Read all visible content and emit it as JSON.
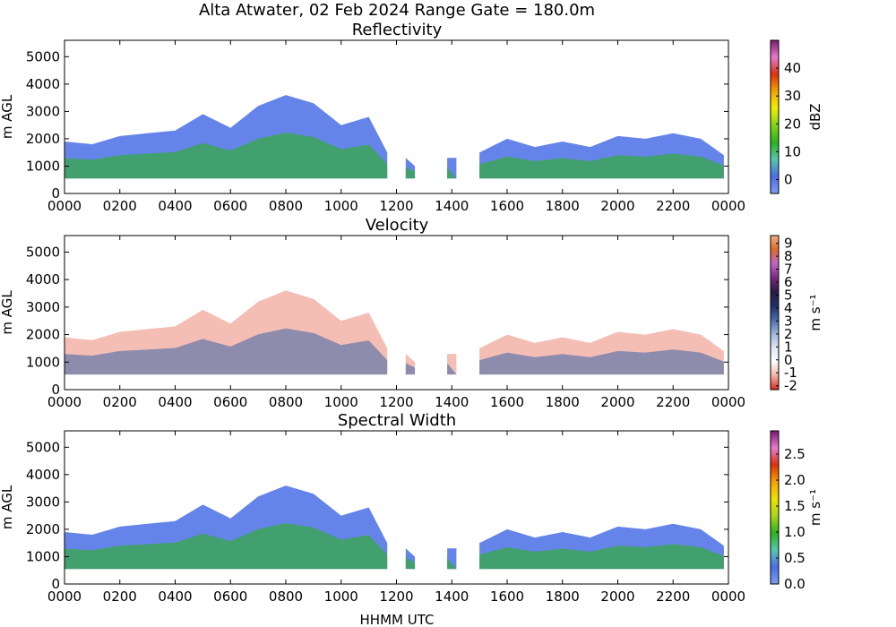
{
  "figure": {
    "suptitle": "Alta Atwater, 02 Feb 2024 Range Gate = 180.0m",
    "xlabel": "HHMM UTC"
  },
  "colors": {
    "ref_scale": [
      "#7f9cf0",
      "#4a6fe6",
      "#58c7b0",
      "#2bb31a",
      "#7fd614",
      "#f0f000",
      "#f5a300",
      "#e0300a",
      "#e87ad0",
      "#7a1a70"
    ],
    "vel_scale": [
      "#d9281c",
      "#f2b3a8",
      "#ffffff",
      "#dfe6f5",
      "#9fb5dc",
      "#4a6aa8",
      "#1f2f66",
      "#2a1a44",
      "#7a2a80",
      "#c066c8",
      "#e06a2a",
      "#f4b088"
    ],
    "sw_scale": [
      "#7f9cf0",
      "#4a6fe6",
      "#58c7b0",
      "#2bb31a",
      "#a8d614",
      "#f0e000",
      "#f5a300",
      "#e0300a",
      "#e87ad0",
      "#7a1a70"
    ]
  },
  "chart_data": [
    {
      "type": "heatmap",
      "title": "Reflectivity",
      "ylabel": "m AGL",
      "xlim": [
        "0000",
        "0000"
      ],
      "xticks": [
        "0000",
        "0200",
        "0400",
        "0600",
        "0800",
        "1000",
        "1200",
        "1400",
        "1600",
        "1800",
        "2000",
        "2200",
        "0000"
      ],
      "ylim": [
        0,
        5600
      ],
      "yticks": [
        "0",
        "1000",
        "2000",
        "3000",
        "4000",
        "5000"
      ],
      "colorbar": {
        "label": "dBZ",
        "ticks": [
          "0",
          "10",
          "20",
          "30",
          "40"
        ],
        "range": [
          -5,
          50
        ]
      },
      "echo_top_m": [
        [
          "0000",
          1900
        ],
        [
          "0100",
          1800
        ],
        [
          "0200",
          2100
        ],
        [
          "0300",
          2200
        ],
        [
          "0400",
          2300
        ],
        [
          "0500",
          2900
        ],
        [
          "0600",
          2400
        ],
        [
          "0700",
          3200
        ],
        [
          "0800",
          3600
        ],
        [
          "0900",
          3300
        ],
        [
          "1000",
          2500
        ],
        [
          "1100",
          2800
        ],
        [
          "1140",
          1500
        ],
        [
          "1200",
          0
        ],
        [
          "1220",
          1300
        ],
        [
          "1240",
          1000
        ],
        [
          "1300",
          0
        ],
        [
          "1350",
          1300
        ],
        [
          "1410",
          0
        ],
        [
          "1500",
          1500
        ],
        [
          "1600",
          2000
        ],
        [
          "1700",
          1700
        ],
        [
          "1800",
          1900
        ],
        [
          "1900",
          1700
        ],
        [
          "2000",
          2100
        ],
        [
          "2100",
          2000
        ],
        [
          "2200",
          2200
        ],
        [
          "2300",
          2000
        ],
        [
          "2350",
          1400
        ]
      ]
    },
    {
      "type": "heatmap",
      "title": "Velocity",
      "ylabel": "m AGL",
      "xlim": [
        "0000",
        "0000"
      ],
      "xticks": [
        "0000",
        "0200",
        "0400",
        "0600",
        "0800",
        "1000",
        "1200",
        "1400",
        "1600",
        "1800",
        "2000",
        "2200",
        "0000"
      ],
      "ylim": [
        0,
        5600
      ],
      "yticks": [
        "0",
        "1000",
        "2000",
        "3000",
        "4000",
        "5000"
      ],
      "colorbar": {
        "label": "m s⁻¹",
        "ticks": [
          "-2",
          "-1",
          "0",
          "1",
          "2",
          "3",
          "4",
          "5",
          "6",
          "7",
          "8",
          "9"
        ],
        "range": [
          -2.3,
          9.6
        ]
      },
      "echo_top_m": [
        [
          "0000",
          1900
        ],
        [
          "0100",
          1800
        ],
        [
          "0200",
          2100
        ],
        [
          "0300",
          2200
        ],
        [
          "0400",
          2300
        ],
        [
          "0500",
          2900
        ],
        [
          "0600",
          2400
        ],
        [
          "0700",
          3200
        ],
        [
          "0800",
          3600
        ],
        [
          "0900",
          3300
        ],
        [
          "1000",
          2500
        ],
        [
          "1100",
          2800
        ],
        [
          "1140",
          1500
        ],
        [
          "1200",
          0
        ],
        [
          "1220",
          1300
        ],
        [
          "1240",
          1000
        ],
        [
          "1300",
          0
        ],
        [
          "1350",
          1300
        ],
        [
          "1410",
          0
        ],
        [
          "1500",
          1500
        ],
        [
          "1600",
          2000
        ],
        [
          "1700",
          1700
        ],
        [
          "1800",
          1900
        ],
        [
          "1900",
          1700
        ],
        [
          "2000",
          2100
        ],
        [
          "2100",
          2000
        ],
        [
          "2200",
          2200
        ],
        [
          "2300",
          2000
        ],
        [
          "2350",
          1400
        ]
      ]
    },
    {
      "type": "heatmap",
      "title": "Spectral Width",
      "ylabel": "m AGL",
      "xlabel": "HHMM UTC",
      "xlim": [
        "0000",
        "0000"
      ],
      "xticks": [
        "0000",
        "0200",
        "0400",
        "0600",
        "0800",
        "1000",
        "1200",
        "1400",
        "1600",
        "1800",
        "2000",
        "2200",
        "0000"
      ],
      "ylim": [
        0,
        5600
      ],
      "yticks": [
        "0",
        "1000",
        "2000",
        "3000",
        "4000",
        "5000"
      ],
      "colorbar": {
        "label": "m s⁻¹",
        "ticks": [
          "0.0",
          "0.5",
          "1.0",
          "1.5",
          "2.0",
          "2.5"
        ],
        "range": [
          0,
          2.95
        ]
      },
      "echo_top_m": [
        [
          "0000",
          1900
        ],
        [
          "0100",
          1800
        ],
        [
          "0200",
          2100
        ],
        [
          "0300",
          2200
        ],
        [
          "0400",
          2300
        ],
        [
          "0500",
          2900
        ],
        [
          "0600",
          2400
        ],
        [
          "0700",
          3200
        ],
        [
          "0800",
          3600
        ],
        [
          "0900",
          3300
        ],
        [
          "1000",
          2500
        ],
        [
          "1100",
          2800
        ],
        [
          "1140",
          1500
        ],
        [
          "1200",
          0
        ],
        [
          "1220",
          1300
        ],
        [
          "1240",
          1000
        ],
        [
          "1300",
          0
        ],
        [
          "1350",
          1300
        ],
        [
          "1410",
          0
        ],
        [
          "1500",
          1500
        ],
        [
          "1600",
          2000
        ],
        [
          "1700",
          1700
        ],
        [
          "1800",
          1900
        ],
        [
          "1900",
          1700
        ],
        [
          "2000",
          2100
        ],
        [
          "2100",
          2000
        ],
        [
          "2200",
          2200
        ],
        [
          "2300",
          2000
        ],
        [
          "2350",
          1400
        ]
      ]
    }
  ]
}
